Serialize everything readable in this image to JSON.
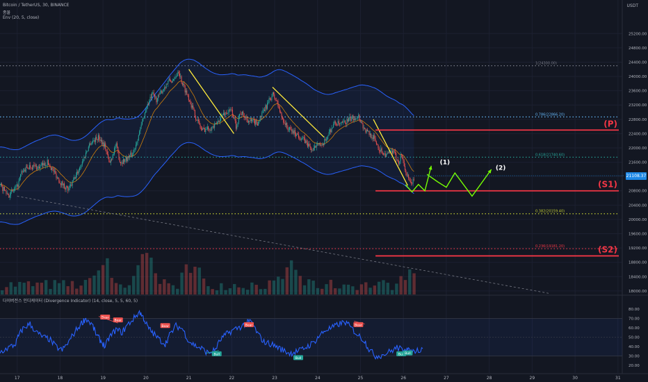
{
  "header": {
    "symbol": "Bitcoin / TetherUS, 30, BINANCE",
    "status": "종물",
    "indicator": "Env (20, 5, close)",
    "currency": "USDT"
  },
  "price_axis": {
    "current_price": "21108.37",
    "ticks": [
      "25200.00",
      "24800.00",
      "24400.00",
      "24000.00",
      "23600.00",
      "23200.00",
      "22800.00",
      "22400.00",
      "22000.00",
      "21600.00",
      "21200.00",
      "20800.00",
      "20400.00",
      "20000.00",
      "19600.00",
      "19200.00",
      "18800.00",
      "18400.00",
      "18000.00"
    ]
  },
  "rsi_axis": {
    "ticks": [
      "80.00",
      "70.00",
      "60.00",
      "50.00",
      "40.00",
      "30.00",
      "20.00"
    ]
  },
  "time_axis": {
    "labels": [
      "17",
      "18",
      "19",
      "20",
      "21",
      "22",
      "23",
      "24",
      "25",
      "26",
      "27",
      "28",
      "29",
      "30",
      "31"
    ]
  },
  "fib_levels": [
    {
      "label": "1(24300.00)",
      "price": 24300,
      "color": "#787b86"
    },
    {
      "label": "0.786(22866.20)",
      "price": 22866.2,
      "color": "#64b5f6"
    },
    {
      "label": "0.618(21740.60)",
      "price": 21740.6,
      "color": "#26a69a"
    },
    {
      "label": "0.382(20159.40)",
      "price": 20159.4,
      "color": "#c0ca33"
    },
    {
      "label": "0.236(19181.20)",
      "price": 19181.2,
      "color": "#f23645"
    }
  ],
  "levels": [
    {
      "label": "(P)",
      "price": 22500
    },
    {
      "label": "(S1)",
      "price": 20800
    },
    {
      "label": "(S2)",
      "price": 18980
    }
  ],
  "annotations": {
    "path1": "(1)",
    "path2": "(2)"
  },
  "rsi_panel": {
    "title": "다이버전스 인디케이터 (Divergence Indicator) (14, close, 5, 5, 60, 5)",
    "bear_label": "Bear",
    "bull_label": "Bull"
  },
  "colors": {
    "background": "#131722",
    "up": "#26a69a",
    "down": "#ef5350",
    "envelope": "#2962ff",
    "ema": "#ff9800",
    "rsi": "#2962ff",
    "level": "#f23645",
    "trend": "#ffeb3b",
    "projection": "#76ff03"
  },
  "chart_data": {
    "type": "candlestick",
    "x_range": [
      "16.6",
      "31.1"
    ],
    "y_range": [
      17900,
      25400
    ],
    "rsi_range": [
      15,
      85
    ],
    "price_path": [
      [
        16.6,
        20950
      ],
      [
        16.8,
        20680
      ],
      [
        17.0,
        20900
      ],
      [
        17.1,
        21300
      ],
      [
        17.3,
        21500
      ],
      [
        17.5,
        21450
      ],
      [
        17.7,
        21600
      ],
      [
        17.85,
        21350
      ],
      [
        18.0,
        21050
      ],
      [
        18.2,
        20820
      ],
      [
        18.4,
        21300
      ],
      [
        18.55,
        21700
      ],
      [
        18.7,
        22150
      ],
      [
        18.9,
        22300
      ],
      [
        19.05,
        22050
      ],
      [
        19.15,
        21550
      ],
      [
        19.3,
        22100
      ],
      [
        19.4,
        21600
      ],
      [
        19.55,
        21700
      ],
      [
        19.7,
        21850
      ],
      [
        19.9,
        22650
      ],
      [
        20.0,
        23100
      ],
      [
        20.15,
        23500
      ],
      [
        20.25,
        23350
      ],
      [
        20.4,
        23650
      ],
      [
        20.55,
        23900
      ],
      [
        20.65,
        23850
      ],
      [
        20.75,
        24200
      ],
      [
        20.85,
        23800
      ],
      [
        21.0,
        23400
      ],
      [
        21.15,
        22900
      ],
      [
        21.3,
        22500
      ],
      [
        21.45,
        22550
      ],
      [
        21.6,
        22600
      ],
      [
        21.8,
        22950
      ],
      [
        22.0,
        23050
      ],
      [
        22.1,
        22600
      ],
      [
        22.2,
        23000
      ],
      [
        22.4,
        22750
      ],
      [
        22.6,
        22700
      ],
      [
        22.8,
        23150
      ],
      [
        22.95,
        23500
      ],
      [
        23.05,
        23300
      ],
      [
        23.15,
        22900
      ],
      [
        23.3,
        22550
      ],
      [
        23.5,
        22400
      ],
      [
        23.7,
        22200
      ],
      [
        23.9,
        21900
      ],
      [
        24.0,
        22200
      ],
      [
        24.1,
        22000
      ],
      [
        24.25,
        22400
      ],
      [
        24.4,
        22700
      ],
      [
        24.55,
        22650
      ],
      [
        24.75,
        22800
      ],
      [
        24.95,
        22900
      ],
      [
        25.1,
        22500
      ],
      [
        25.3,
        22300
      ],
      [
        25.45,
        21950
      ],
      [
        25.6,
        21800
      ],
      [
        25.75,
        21900
      ],
      [
        25.9,
        21600
      ],
      [
        25.95,
        21850
      ],
      [
        26.05,
        21350
      ],
      [
        26.15,
        21000
      ],
      [
        26.25,
        21100
      ]
    ],
    "volume": {
      "bins": 95,
      "x_start": 16.6,
      "x_end": 26.3,
      "peaks": [
        {
          "x": 19.0,
          "height": 52
        },
        {
          "x": 20.0,
          "height": 70
        },
        {
          "x": 21.1,
          "height": 48
        },
        {
          "x": 23.4,
          "height": 40
        },
        {
          "x": 26.2,
          "height": 44
        }
      ]
    },
    "trend_lines": [
      {
        "from": [
          21.0,
          24200
        ],
        "to": [
          22.05,
          22400
        ]
      },
      {
        "from": [
          22.95,
          23700
        ],
        "to": [
          24.15,
          22300
        ]
      },
      {
        "from": [
          25.3,
          22800
        ],
        "to": [
          26.1,
          20950
        ]
      }
    ],
    "projection": [
      [
        26.05,
        20970
      ],
      [
        26.2,
        20770
      ],
      [
        26.35,
        20980
      ],
      [
        26.5,
        20800
      ],
      [
        26.65,
        21500
      ],
      [
        26.55,
        21260
      ],
      [
        26.8,
        21050
      ],
      [
        27.0,
        20900
      ],
      [
        27.2,
        21300
      ],
      [
        27.6,
        20650
      ],
      [
        28.05,
        21400
      ]
    ],
    "projection_marks": [
      {
        "label": "(1)",
        "x": 26.85,
        "price": 21500
      },
      {
        "label": "(2)",
        "x": 28.15,
        "price": 21350
      }
    ],
    "envelope_offset_pct": 5,
    "ema_length": 20,
    "rsi": [
      [
        16.6,
        34
      ],
      [
        16.8,
        39
      ],
      [
        16.95,
        42
      ],
      [
        17.05,
        53
      ],
      [
        17.15,
        60
      ],
      [
        17.3,
        64
      ],
      [
        17.45,
        55
      ],
      [
        17.6,
        50
      ],
      [
        17.75,
        48
      ],
      [
        17.9,
        40
      ],
      [
        18.05,
        36
      ],
      [
        18.2,
        45
      ],
      [
        18.35,
        56
      ],
      [
        18.5,
        65
      ],
      [
        18.6,
        70
      ],
      [
        18.75,
        63
      ],
      [
        18.85,
        52
      ],
      [
        18.95,
        46
      ],
      [
        19.05,
        40
      ],
      [
        19.15,
        50
      ],
      [
        19.3,
        58
      ],
      [
        19.45,
        55
      ],
      [
        19.55,
        62
      ],
      [
        19.7,
        69
      ],
      [
        19.85,
        77
      ],
      [
        19.95,
        70
      ],
      [
        20.05,
        60
      ],
      [
        20.15,
        55
      ],
      [
        20.3,
        48
      ],
      [
        20.45,
        43
      ],
      [
        20.55,
        52
      ],
      [
        20.7,
        62
      ],
      [
        20.85,
        59
      ],
      [
        21.0,
        46
      ],
      [
        21.15,
        41
      ],
      [
        21.3,
        38
      ],
      [
        21.45,
        33
      ],
      [
        21.6,
        36
      ],
      [
        21.75,
        48
      ],
      [
        21.9,
        54
      ],
      [
        22.05,
        58
      ],
      [
        22.2,
        61
      ],
      [
        22.35,
        65
      ],
      [
        22.45,
        67
      ],
      [
        22.6,
        54
      ],
      [
        22.75,
        45
      ],
      [
        22.9,
        43
      ],
      [
        23.05,
        40
      ],
      [
        23.2,
        36
      ],
      [
        23.35,
        33
      ],
      [
        23.45,
        34
      ],
      [
        23.6,
        36
      ],
      [
        23.75,
        40
      ],
      [
        23.9,
        44
      ],
      [
        24.05,
        52
      ],
      [
        24.2,
        58
      ],
      [
        24.35,
        60
      ],
      [
        24.5,
        64
      ],
      [
        24.65,
        66
      ],
      [
        24.8,
        59
      ],
      [
        24.95,
        52
      ],
      [
        25.1,
        46
      ],
      [
        25.2,
        37
      ],
      [
        25.35,
        30
      ],
      [
        25.5,
        31
      ],
      [
        25.7,
        35
      ],
      [
        25.85,
        39
      ],
      [
        25.95,
        37
      ],
      [
        26.05,
        39
      ],
      [
        26.15,
        34
      ],
      [
        26.3,
        36
      ],
      [
        26.45,
        38
      ]
    ],
    "rsi_bear_marks": [
      [
        19.05,
        71
      ],
      [
        19.35,
        68
      ],
      [
        20.45,
        62
      ],
      [
        22.4,
        63
      ],
      [
        24.95,
        63
      ]
    ],
    "rsi_bull_marks": [
      [
        21.65,
        32
      ],
      [
        23.55,
        28
      ],
      [
        25.95,
        32
      ],
      [
        26.1,
        33
      ]
    ],
    "grid": true,
    "legend": "none"
  }
}
